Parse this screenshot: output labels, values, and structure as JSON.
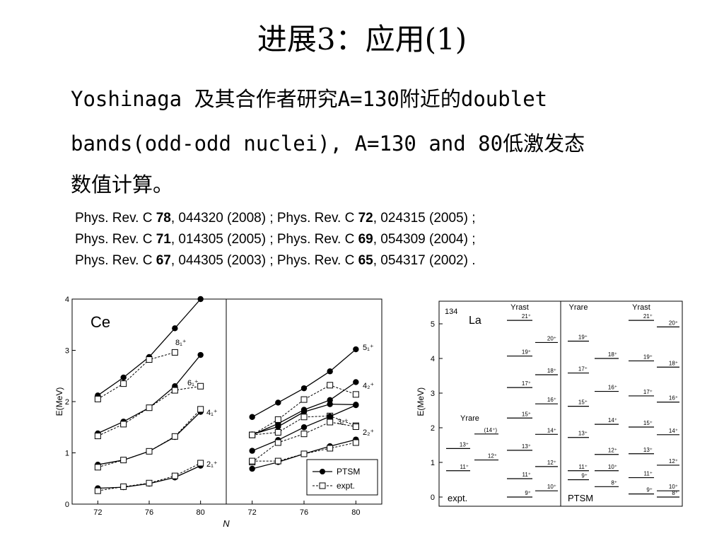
{
  "title": "进展3：应用(1)",
  "body": [
    "Yoshinaga 及其合作者研究A=130附近的doublet",
    "bands(odd-odd nuclei), A=130 and 80低激发态",
    "数值计算。"
  ],
  "refs": [
    [
      {
        "pre": "Phys. Rev. C ",
        "vol": "78",
        "post": ", 044320 (2008) ; "
      },
      {
        "pre": "Phys. Rev. C ",
        "vol": "72",
        "post": ", 024315 (2005) ;"
      }
    ],
    [
      {
        "pre": "Phys. Rev. C ",
        "vol": "71",
        "post": ", 014305 (2005) ; "
      },
      {
        "pre": "Phys. Rev. C ",
        "vol": "69",
        "post": ", 054309 (2004) ;"
      }
    ],
    [
      {
        "pre": "Phys. Rev. C ",
        "vol": "67",
        "post": ", 044305 (2003) ; "
      },
      {
        "pre": "Phys. Rev. C ",
        "vol": "65",
        "post": ", 054317 (2002) ."
      }
    ]
  ],
  "chart_data": [
    {
      "type": "line",
      "panel": "left",
      "element": "Ce",
      "xlabel": "N",
      "ylabel": "E(MeV)",
      "ylim": [
        0,
        4
      ],
      "xlim": [
        70,
        82
      ],
      "xticks": [
        "72",
        "76",
        "80"
      ],
      "yticks": [
        "0",
        "1",
        "2",
        "3",
        "4"
      ],
      "x": [
        72,
        74,
        76,
        78,
        80
      ],
      "series": [
        {
          "name": "PTSM",
          "label": "8₁⁺",
          "values": [
            2.12,
            2.47,
            2.87,
            3.43,
            4.0
          ]
        },
        {
          "name": "expt.",
          "label": "8₁⁺",
          "values": [
            2.05,
            2.35,
            2.82,
            2.96,
            null
          ]
        },
        {
          "name": "PTSM",
          "label": "6₁⁺",
          "values": [
            1.38,
            1.61,
            1.88,
            2.3,
            2.91
          ]
        },
        {
          "name": "expt.",
          "label": "6₁⁺",
          "values": [
            1.33,
            1.56,
            1.88,
            2.22,
            2.3
          ]
        },
        {
          "name": "PTSM",
          "label": "4₁⁺",
          "values": [
            0.77,
            0.86,
            1.03,
            1.31,
            1.8
          ]
        },
        {
          "name": "expt.",
          "label": "4₁⁺",
          "values": [
            0.72,
            0.86,
            1.03,
            1.32,
            1.85
          ]
        },
        {
          "name": "PTSM",
          "label": "2₁⁺",
          "values": [
            0.31,
            0.33,
            0.4,
            0.52,
            0.75
          ]
        },
        {
          "name": "expt.",
          "label": "2₁⁺",
          "values": [
            0.26,
            0.34,
            0.41,
            0.55,
            0.8
          ]
        }
      ]
    },
    {
      "type": "line",
      "panel": "middle",
      "xlabel": "N",
      "ylim": [
        0,
        4
      ],
      "xlim": [
        70,
        82
      ],
      "xticks": [
        "72",
        "76",
        "80"
      ],
      "x": [
        72,
        74,
        76,
        78,
        80
      ],
      "legend": {
        "position": "bottom-right",
        "entries": [
          "PTSM",
          "expt."
        ]
      },
      "series": [
        {
          "name": "PTSM",
          "label": "5₁⁺",
          "values": [
            1.7,
            1.98,
            2.26,
            2.59,
            3.02
          ]
        },
        {
          "name": "PTSM",
          "label": "4₂⁺",
          "values": [
            1.35,
            1.57,
            1.84,
            2.03,
            2.38
          ]
        },
        {
          "name": "expt.",
          "label": "4₂⁺",
          "values": [
            1.35,
            1.65,
            2.04,
            2.32,
            2.14
          ]
        },
        {
          "name": "PTSM",
          "label": "3₁⁺",
          "values": [
            1.36,
            1.51,
            1.8,
            1.95,
            1.94
          ]
        },
        {
          "name": "expt.",
          "label": "3₁⁺",
          "values": [
            1.35,
            1.4,
            1.7,
            1.72,
            1.53
          ]
        },
        {
          "name": "PTSM",
          "label": "2₂⁺",
          "values": [
            1.04,
            1.25,
            1.5,
            1.71,
            1.93
          ]
        },
        {
          "name": "expt.",
          "label": "2₂⁺",
          "values": [
            0.82,
            1.2,
            1.37,
            1.6,
            1.51
          ]
        },
        {
          "name": "PTSM",
          "values": [
            0.69,
            0.82,
            0.98,
            1.13,
            1.26
          ]
        },
        {
          "name": "expt.",
          "values": [
            0.84,
            0.84,
            0.98,
            1.09,
            1.2
          ]
        }
      ]
    },
    {
      "type": "level-scheme",
      "nucleus_mass": "134",
      "nucleus": "La",
      "ylabel": "E(MeV)",
      "ylim": [
        0,
        5.5
      ],
      "yticks": [
        "0",
        "1",
        "2",
        "3",
        "4",
        "5"
      ],
      "columns": [
        {
          "section": "expt.",
          "header": "",
          "levels": [
            {
              "spin": "11⁺",
              "e": 0.76
            },
            {
              "spin": "13⁺",
              "e": 1.4
            }
          ],
          "band_label": "Yrare"
        },
        {
          "section": "expt.",
          "header": "",
          "levels": [
            {
              "spin": "12⁺",
              "e": 1.07
            },
            {
              "spin": "(14⁺)",
              "e": 1.82
            }
          ]
        },
        {
          "section": "expt.",
          "header": "Yrast",
          "levels": [
            {
              "spin": "9⁺",
              "e": 0
            },
            {
              "spin": "11⁺",
              "e": 0.53
            },
            {
              "spin": "13⁺",
              "e": 1.35
            },
            {
              "spin": "15⁺",
              "e": 2.28
            },
            {
              "spin": "17⁺",
              "e": 3.16
            },
            {
              "spin": "19⁺",
              "e": 4.07
            },
            {
              "spin": "21⁺",
              "e": 5.1
            }
          ]
        },
        {
          "section": "expt.",
          "header": "",
          "levels": [
            {
              "spin": "10⁺",
              "e": 0.18
            },
            {
              "spin": "12⁺",
              "e": 0.88
            },
            {
              "spin": "14⁺",
              "e": 1.81
            },
            {
              "spin": "16⁺",
              "e": 2.69
            },
            {
              "spin": "18⁺",
              "e": 3.53
            },
            {
              "spin": "20⁺",
              "e": 4.46
            }
          ]
        },
        {
          "section": "PTSM",
          "header": "Yrare",
          "levels": [
            {
              "spin": "9⁺",
              "e": 0.5
            },
            {
              "spin": "11⁺",
              "e": 0.76
            },
            {
              "spin": "13⁺",
              "e": 1.72
            },
            {
              "spin": "15⁺",
              "e": 2.62
            },
            {
              "spin": "17⁺",
              "e": 3.58
            },
            {
              "spin": "19⁺",
              "e": 4.5
            }
          ]
        },
        {
          "section": "PTSM",
          "header": "",
          "levels": [
            {
              "spin": "8⁺",
              "e": 0.3
            },
            {
              "spin": "10⁺",
              "e": 0.76
            },
            {
              "spin": "12⁺",
              "e": 1.23
            },
            {
              "spin": "14⁺",
              "e": 2.1
            },
            {
              "spin": "16⁺",
              "e": 3.05
            },
            {
              "spin": "18⁺",
              "e": 4.0
            }
          ]
        },
        {
          "section": "PTSM",
          "header": "Yrast",
          "levels": [
            {
              "spin": "9⁺",
              "e": 0.09
            },
            {
              "spin": "11⁺",
              "e": 0.56
            },
            {
              "spin": "13⁺",
              "e": 1.25
            },
            {
              "spin": "15⁺",
              "e": 2.02
            },
            {
              "spin": "17⁺",
              "e": 2.92
            },
            {
              "spin": "19⁺",
              "e": 3.93
            },
            {
              "spin": "21⁺",
              "e": 5.1
            }
          ]
        },
        {
          "section": "PTSM",
          "header": "",
          "levels": [
            {
              "spin": "8⁺",
              "e": 0.0
            },
            {
              "spin": "10⁺",
              "e": 0.18
            },
            {
              "spin": "12⁺",
              "e": 0.92
            },
            {
              "spin": "14⁺",
              "e": 1.8
            },
            {
              "spin": "16⁺",
              "e": 2.74
            },
            {
              "spin": "18⁺",
              "e": 3.75
            },
            {
              "spin": "20⁺",
              "e": 4.91
            }
          ]
        }
      ]
    }
  ]
}
